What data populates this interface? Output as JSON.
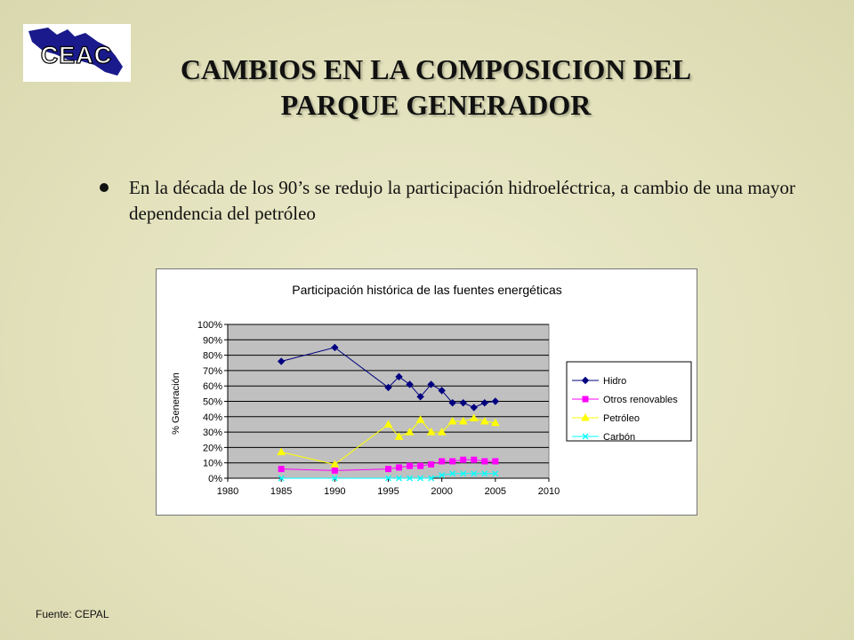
{
  "logo": {
    "text": "CEAC"
  },
  "title": {
    "line1": "CAMBIOS EN LA COMPOSICION DEL",
    "line2": "PARQUE GENERADOR"
  },
  "bullet": {
    "text": "En la década de los 90’s se redujo la participación hidroeléctrica, a cambio de una mayor dependencia del petróleo"
  },
  "source": "Fuente: CEPAL",
  "chart_data": {
    "type": "line",
    "title": "Participación histórica de las fuentes energéticas",
    "xlabel": "",
    "ylabel": "% Generación",
    "xlim": [
      1980,
      2010
    ],
    "ylim": [
      0,
      100
    ],
    "x_ticks": [
      "1980",
      "1985",
      "1990",
      "1995",
      "2000",
      "2005",
      "2010"
    ],
    "y_ticks": [
      "0%",
      "10%",
      "20%",
      "30%",
      "40%",
      "50%",
      "60%",
      "70%",
      "80%",
      "90%",
      "100%"
    ],
    "grid": true,
    "legend_position": "right",
    "plot_background": "#c0c0c0",
    "series": [
      {
        "name": "Hidro",
        "color": "#000080",
        "marker": "diamond",
        "x": [
          1985,
          1990,
          1995,
          1996,
          1997,
          1998,
          1999,
          2000,
          2001,
          2002,
          2003,
          2004,
          2005
        ],
        "y": [
          76,
          85,
          59,
          66,
          61,
          53,
          61,
          57,
          49,
          49,
          46,
          49,
          50
        ]
      },
      {
        "name": "Otros renovables",
        "color": "#ff00ff",
        "marker": "square",
        "x": [
          1985,
          1990,
          1995,
          1996,
          1997,
          1998,
          1999,
          2000,
          2001,
          2002,
          2003,
          2004,
          2005
        ],
        "y": [
          6,
          5,
          6,
          7,
          8,
          8,
          9,
          11,
          11,
          12,
          12,
          11,
          11
        ]
      },
      {
        "name": "Petróleo",
        "color": "#ffff00",
        "marker": "triangle",
        "x": [
          1985,
          1990,
          1995,
          1996,
          1997,
          1998,
          1999,
          2000,
          2001,
          2002,
          2003,
          2004,
          2005
        ],
        "y": [
          17,
          9,
          35,
          27,
          30,
          38,
          30,
          30,
          37,
          37,
          39,
          37,
          36
        ]
      },
      {
        "name": "Carbón",
        "color": "#00ffff",
        "marker": "x",
        "x": [
          1985,
          1990,
          1995,
          1996,
          1997,
          1998,
          1999,
          2000,
          2001,
          2002,
          2003,
          2004,
          2005
        ],
        "y": [
          0,
          0,
          0,
          0,
          0,
          0,
          0,
          2,
          3,
          3,
          3,
          3,
          3
        ]
      }
    ]
  }
}
